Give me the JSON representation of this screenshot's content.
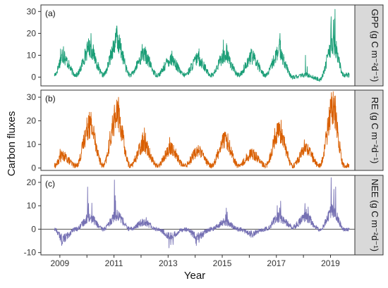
{
  "figure": {
    "ylabel": "Carbon fluxes",
    "xlabel": "Year"
  },
  "chart_data": [
    {
      "type": "line",
      "panel_label": "(a)",
      "strip_label": "GPP (g C m⁻²d⁻¹)",
      "color": "#1b9e77",
      "ylim": [
        -4,
        33
      ],
      "yticks": [
        0,
        10,
        20,
        30
      ],
      "xlim": [
        2008.3,
        2019.9
      ],
      "grid": false,
      "zero_line": false,
      "series": [
        {
          "seasonal_profile": [
            {
              "year": 2008.8,
              "base": 1
            },
            {
              "year": 2009.1,
              "peak": 9,
              "spike": 14
            },
            {
              "year": 2009.6,
              "base": 1
            },
            {
              "year": 2010.1,
              "peak": 13,
              "spike": 20
            },
            {
              "year": 2010.6,
              "base": 1
            },
            {
              "year": 2011.1,
              "peak": 16,
              "spike": 27
            },
            {
              "year": 2011.6,
              "base": 1
            },
            {
              "year": 2012.1,
              "peak": 10,
              "spike": 15
            },
            {
              "year": 2012.6,
              "base": 1
            },
            {
              "year": 2013.1,
              "peak": 8,
              "spike": 12
            },
            {
              "year": 2013.6,
              "base": 1
            },
            {
              "year": 2014.1,
              "peak": 8,
              "spike": 13
            },
            {
              "year": 2014.6,
              "base": 1
            },
            {
              "year": 2015.1,
              "peak": 10,
              "spike": 17
            },
            {
              "year": 2015.6,
              "base": 1
            },
            {
              "year": 2016.1,
              "peak": 9,
              "spike": 14
            },
            {
              "year": 2016.6,
              "base": 1
            },
            {
              "year": 2017.1,
              "peak": 11,
              "spike": 20
            },
            {
              "year": 2017.6,
              "base": 0
            },
            {
              "year": 2018.1,
              "peak": 1,
              "spike": 10
            },
            {
              "year": 2018.6,
              "base": -1
            },
            {
              "year": 2019.1,
              "peak": 15,
              "spike": 31
            },
            {
              "year": 2019.5,
              "base": 1
            },
            {
              "year": 2019.7,
              "base": 1
            }
          ]
        }
      ]
    },
    {
      "type": "line",
      "panel_label": "(b)",
      "strip_label": "RE (g C m⁻²d⁻¹)",
      "color": "#d95f02",
      "ylim": [
        -1,
        33
      ],
      "yticks": [
        0,
        10,
        20,
        30
      ],
      "xlim": [
        2008.3,
        2019.9
      ],
      "grid": false,
      "zero_line": false,
      "series": [
        {
          "seasonal_profile": [
            {
              "year": 2008.8,
              "base": 1
            },
            {
              "year": 2009.1,
              "peak": 5,
              "spike": 8
            },
            {
              "year": 2009.6,
              "base": 1
            },
            {
              "year": 2010.1,
              "peak": 18,
              "spike": 26
            },
            {
              "year": 2010.6,
              "base": 1
            },
            {
              "year": 2011.1,
              "peak": 22,
              "spike": 30
            },
            {
              "year": 2011.6,
              "base": 1
            },
            {
              "year": 2012.1,
              "peak": 10,
              "spike": 17
            },
            {
              "year": 2012.6,
              "base": 1
            },
            {
              "year": 2013.1,
              "peak": 8,
              "spike": 13
            },
            {
              "year": 2013.6,
              "base": 1
            },
            {
              "year": 2014.1,
              "peak": 7,
              "spike": 11
            },
            {
              "year": 2014.6,
              "base": 1
            },
            {
              "year": 2015.1,
              "peak": 12,
              "spike": 18
            },
            {
              "year": 2015.6,
              "base": 1
            },
            {
              "year": 2016.1,
              "peak": 6,
              "spike": 8
            },
            {
              "year": 2016.6,
              "base": 1
            },
            {
              "year": 2017.1,
              "peak": 16,
              "spike": 22
            },
            {
              "year": 2017.6,
              "base": 1
            },
            {
              "year": 2018.1,
              "peak": 8,
              "spike": 12
            },
            {
              "year": 2018.6,
              "base": 1
            },
            {
              "year": 2019.1,
              "peak": 25,
              "spike": 32
            },
            {
              "year": 2019.5,
              "base": 1
            },
            {
              "year": 2019.7,
              "base": 1
            }
          ]
        }
      ]
    },
    {
      "type": "line",
      "panel_label": "(c)",
      "strip_label": "NEE (g C m⁻²d⁻¹)",
      "color": "#7570b3",
      "ylim": [
        -11,
        23
      ],
      "yticks": [
        -10,
        0,
        10,
        20
      ],
      "xlim": [
        2008.3,
        2019.9
      ],
      "grid": false,
      "zero_line": true,
      "series": [
        {
          "seasonal_profile": [
            {
              "year": 2008.8,
              "base": 0
            },
            {
              "year": 2009.1,
              "peak": -4,
              "spike": -7
            },
            {
              "year": 2009.6,
              "base": 0
            },
            {
              "year": 2010.1,
              "peak": 5,
              "spike": 18
            },
            {
              "year": 2010.6,
              "base": 0
            },
            {
              "year": 2011.1,
              "peak": 6,
              "spike": 21
            },
            {
              "year": 2011.6,
              "base": 0
            },
            {
              "year": 2012.1,
              "peak": 3,
              "spike": 5
            },
            {
              "year": 2012.6,
              "base": 0
            },
            {
              "year": 2013.1,
              "peak": -3,
              "spike": -8
            },
            {
              "year": 2013.6,
              "base": 0
            },
            {
              "year": 2014.1,
              "peak": -3,
              "spike": -7
            },
            {
              "year": 2014.6,
              "base": 0
            },
            {
              "year": 2015.1,
              "peak": 3,
              "spike": 9
            },
            {
              "year": 2015.6,
              "base": 0
            },
            {
              "year": 2016.1,
              "peak": -2,
              "spike": -4
            },
            {
              "year": 2016.6,
              "base": 0
            },
            {
              "year": 2017.1,
              "peak": 5,
              "spike": 12
            },
            {
              "year": 2017.6,
              "base": 1
            },
            {
              "year": 2018.1,
              "peak": 5,
              "spike": 11
            },
            {
              "year": 2018.6,
              "base": 0
            },
            {
              "year": 2019.1,
              "peak": 8,
              "spike": 22
            },
            {
              "year": 2019.5,
              "base": 0
            },
            {
              "year": 2019.7,
              "base": 0
            }
          ]
        }
      ]
    }
  ],
  "x_axis": {
    "ticks": [
      "2009",
      "2011",
      "2013",
      "2015",
      "2017",
      "2019"
    ],
    "tick_values": [
      2009,
      2011,
      2013,
      2015,
      2017,
      2019
    ],
    "minor_tick_values": [
      2010,
      2012,
      2014,
      2016,
      2018
    ]
  },
  "colors": {
    "strip_fill": "#d9d9d9",
    "panel_border": "#333333",
    "zero_line": "#555555"
  }
}
